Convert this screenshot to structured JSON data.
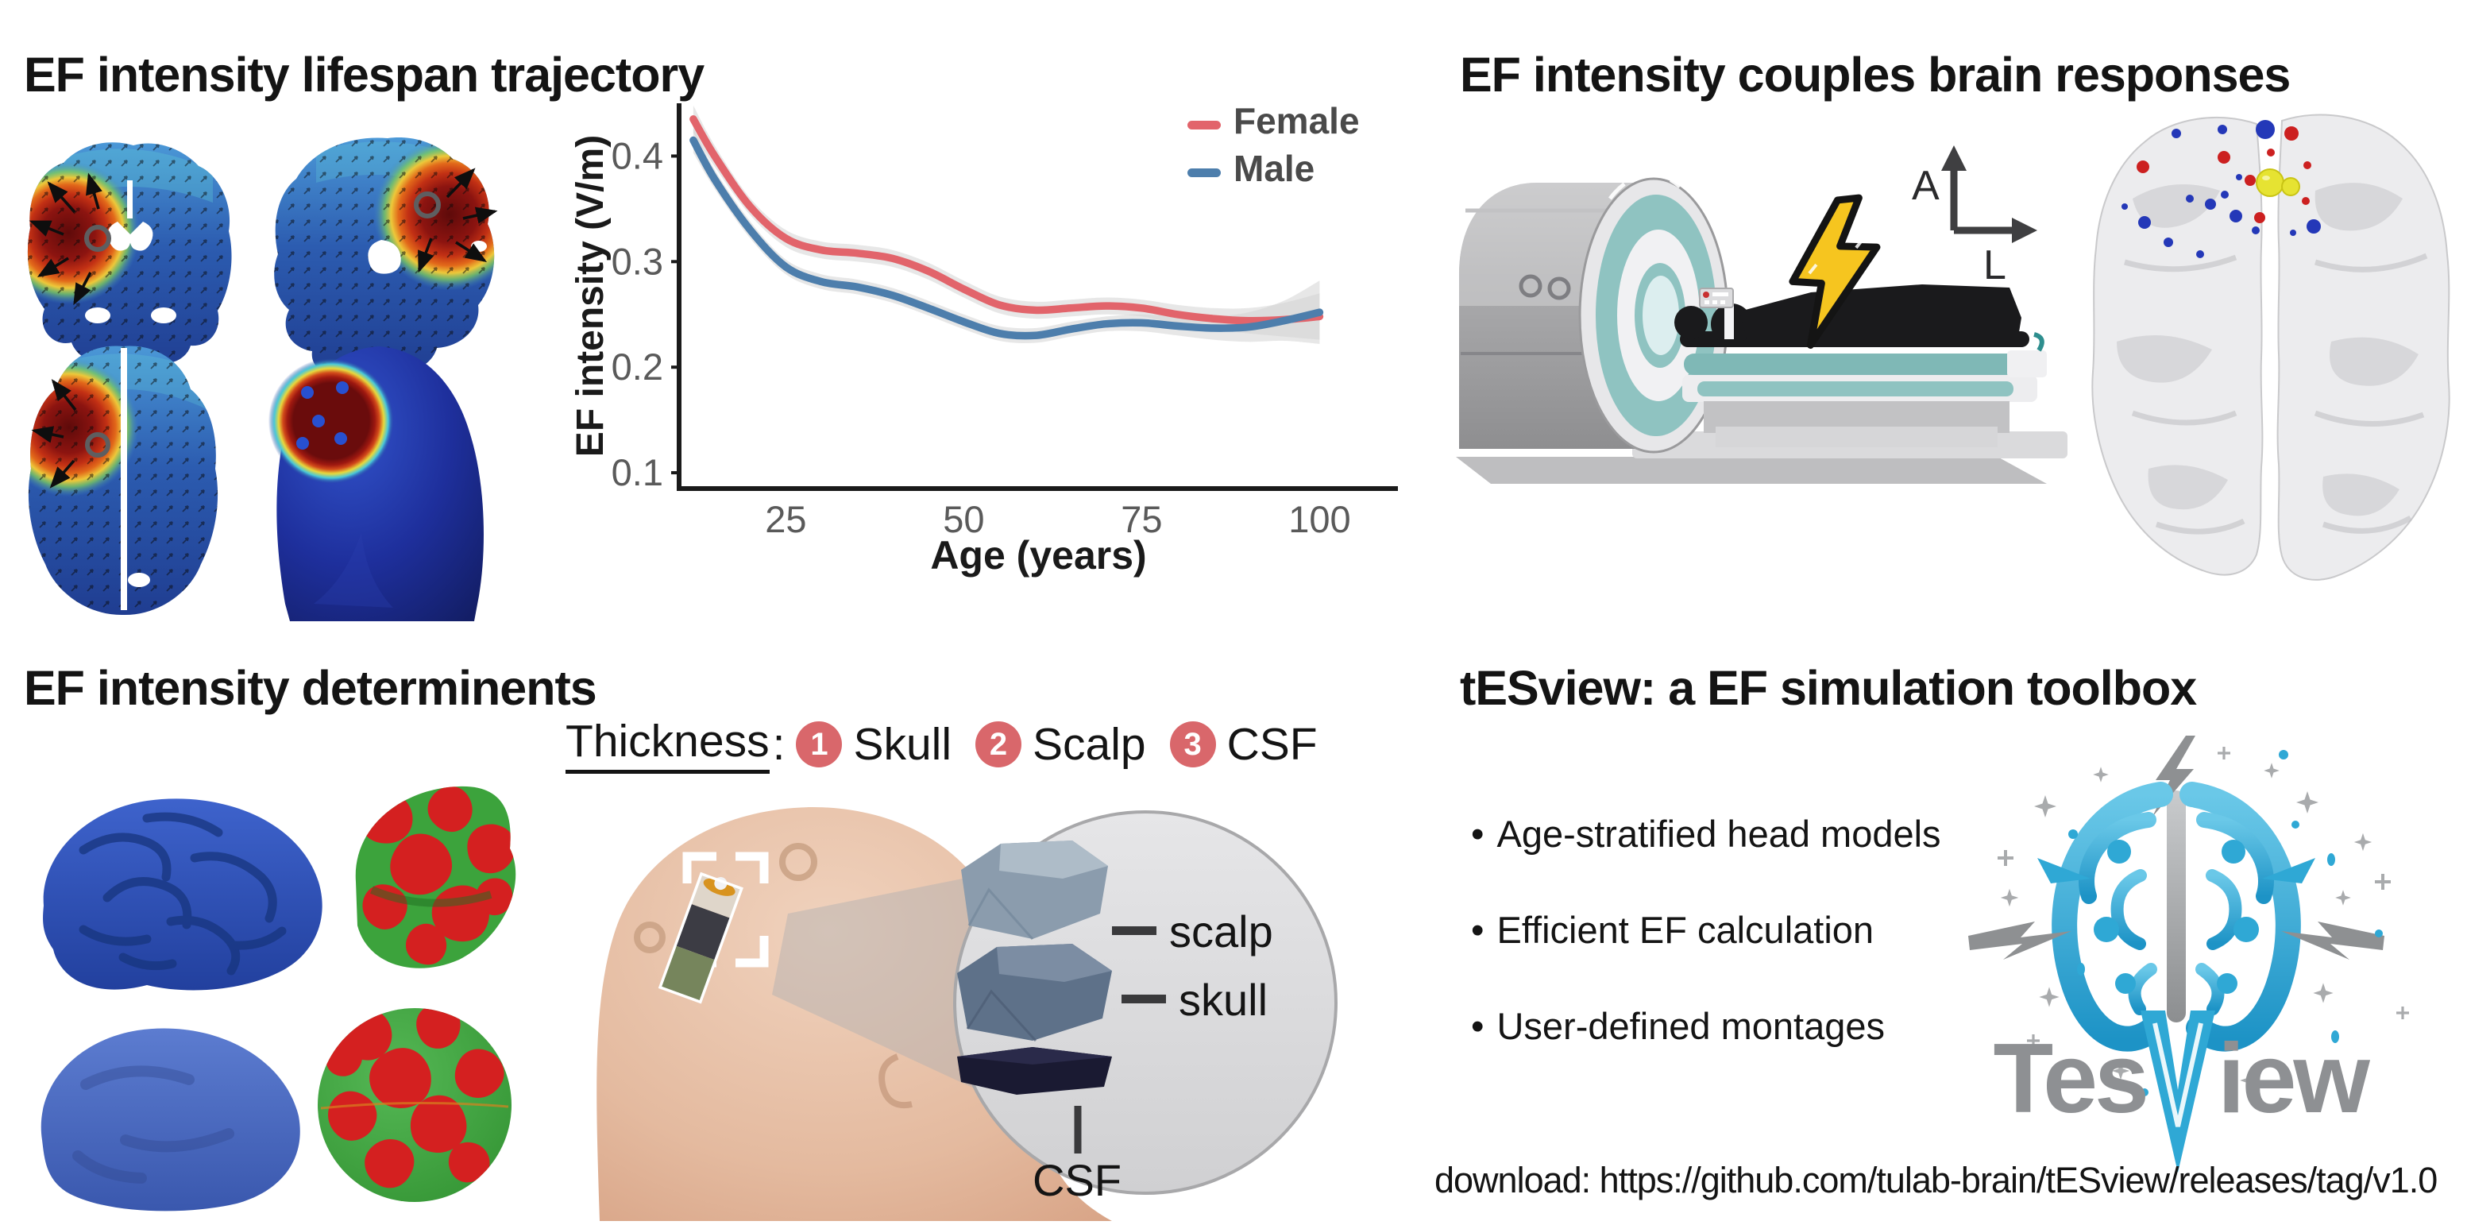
{
  "panels": {
    "lifespan": {
      "title": "EF intensity lifespan trajectory"
    },
    "coupling": {
      "title": "EF intensity couples brain responses",
      "axis_anterior": "A",
      "axis_left": "L"
    },
    "determinants": {
      "title": "EF intensity determinents",
      "thickness_label": "Thickness",
      "thickness_colon": ":",
      "factors": [
        {
          "num": "1",
          "label": "Skull"
        },
        {
          "num": "2",
          "label": "Scalp"
        },
        {
          "num": "3",
          "label": "CSF"
        }
      ],
      "layers": {
        "scalp": "scalp",
        "skull": "skull",
        "csf": "CSF"
      }
    },
    "toolbox": {
      "title": "tESview: a EF simulation toolbox",
      "bullets": [
        "Age-stratified head models",
        "Efficient EF calculation",
        "User-defined montages"
      ],
      "logo": {
        "prefix": "Tes",
        "v": "V",
        "suffix": "iew"
      },
      "download": "download: https://github.com/tulab-brain/tESview/releases/tag/v1.0"
    }
  },
  "icons": {
    "lightning-icon": "yellow stimulation bolt",
    "orientation-axes-icon": "A/L anatomical orientation arrows",
    "sparkle-icon": "four-point star",
    "magnifier-circle-icon": "zoom inset circle"
  },
  "colors": {
    "badge": "#D9676B",
    "female": "#E2646B",
    "male": "#4D7EAC",
    "band": "#D4D4D4",
    "axis": "#1A1A1A",
    "tick_label": "#5A5A5A",
    "legend_text": "#4A4A4A",
    "mri_teal": "#8FC3C1",
    "lightning_yellow": "#F6C51F",
    "logo_blue": "#2FA8D5",
    "logo_gray": "#A9ABAD",
    "head_peach": "#E8C2AB"
  },
  "chart_data": {
    "type": "line",
    "title": "",
    "xlabel": "Age (years)",
    "ylabel": "EF intensity (V/m)",
    "xlim": [
      10,
      111
    ],
    "ylim": [
      0.085,
      0.45
    ],
    "x_ticks": [
      25,
      50,
      75,
      100
    ],
    "y_ticks": [
      0.1,
      0.2,
      0.3,
      0.4
    ],
    "grid": false,
    "legend_position": "top-right",
    "band_color": "#D4D4D4",
    "x": [
      12,
      15,
      20,
      25,
      30,
      35,
      40,
      45,
      50,
      55,
      60,
      65,
      70,
      75,
      80,
      85,
      90,
      95,
      100
    ],
    "series": [
      {
        "name": "Female",
        "color": "#E2646B",
        "values": [
          0.435,
          0.4,
          0.352,
          0.322,
          0.311,
          0.308,
          0.303,
          0.291,
          0.274,
          0.259,
          0.254,
          0.256,
          0.258,
          0.256,
          0.25,
          0.246,
          0.244,
          0.245,
          0.248
        ],
        "ci": [
          0.013,
          0.01,
          0.008,
          0.008,
          0.008,
          0.008,
          0.008,
          0.008,
          0.008,
          0.008,
          0.008,
          0.008,
          0.008,
          0.008,
          0.009,
          0.01,
          0.012,
          0.016,
          0.022
        ]
      },
      {
        "name": "Male",
        "color": "#4D7EAC",
        "values": [
          0.415,
          0.378,
          0.33,
          0.295,
          0.281,
          0.276,
          0.268,
          0.256,
          0.243,
          0.232,
          0.23,
          0.236,
          0.241,
          0.242,
          0.239,
          0.237,
          0.238,
          0.244,
          0.252
        ],
        "ci": [
          0.012,
          0.009,
          0.008,
          0.007,
          0.007,
          0.007,
          0.007,
          0.007,
          0.007,
          0.007,
          0.007,
          0.007,
          0.007,
          0.008,
          0.009,
          0.011,
          0.014,
          0.019,
          0.03
        ]
      }
    ]
  }
}
